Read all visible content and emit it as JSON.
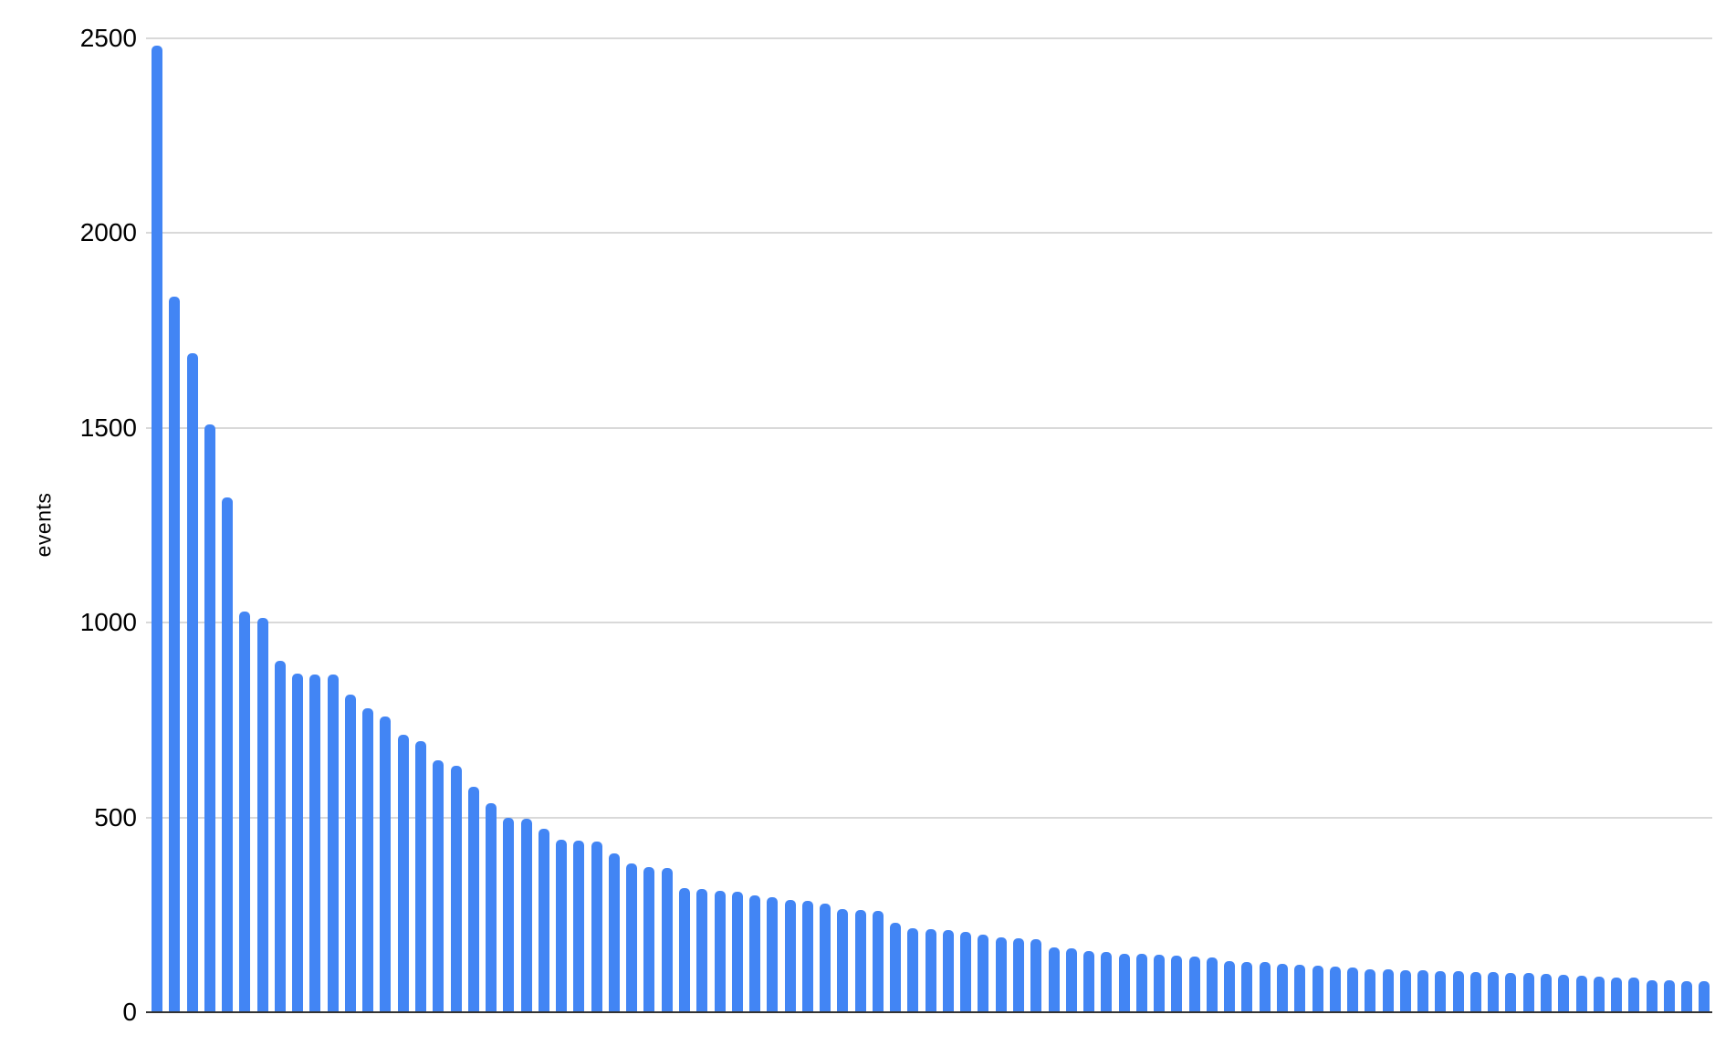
{
  "chart_data": {
    "type": "bar",
    "ylabel": "events",
    "ylim": [
      0,
      2500
    ],
    "yticks": [
      0,
      500,
      1000,
      1500,
      2000,
      2500
    ],
    "grid": true,
    "legend_position": "none",
    "x_tick_labels_visible": false,
    "values": [
      2481,
      1836,
      1691,
      1509,
      1322,
      1029,
      1012,
      902,
      869,
      867,
      866,
      815,
      780,
      759,
      712,
      696,
      647,
      633,
      579,
      537,
      500,
      497,
      471,
      443,
      441,
      438,
      408,
      382,
      372,
      370,
      319,
      317,
      312,
      309,
      301,
      296,
      289,
      286,
      278,
      266,
      262,
      260,
      230,
      216,
      214,
      211,
      207,
      199,
      193,
      191,
      188,
      167,
      165,
      156,
      155,
      151,
      150,
      147,
      146,
      142,
      141,
      132,
      130,
      128,
      125,
      123,
      120,
      117,
      115,
      111,
      110,
      108,
      107,
      106,
      105,
      104,
      103,
      101,
      100,
      98,
      96,
      94,
      92,
      90,
      89,
      83,
      81,
      80,
      79
    ]
  },
  "colors": {
    "bar": "#4285f4",
    "gridline": "#d9d9d9",
    "axis": "#333333",
    "text": "#000000",
    "background": "#ffffff"
  }
}
